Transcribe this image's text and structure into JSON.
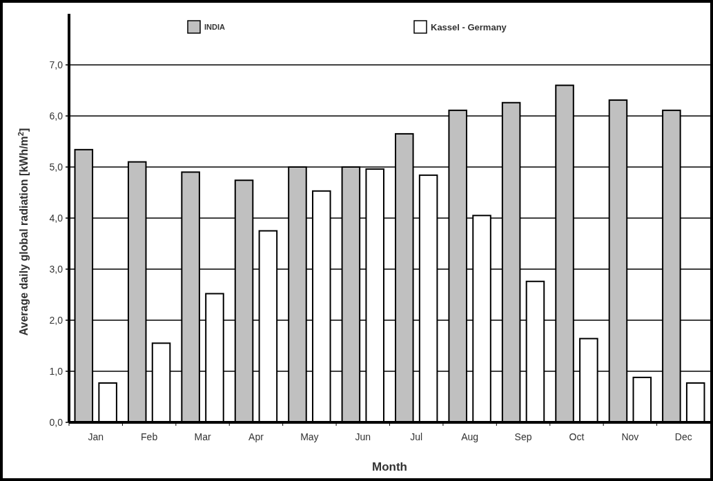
{
  "chart_data": {
    "type": "bar",
    "xlabel": "Month",
    "ylabel": "Average daily global radiation [kWh/m$^{2}$]",
    "categories": [
      "Jan",
      "Feb",
      "Mar",
      "Apr",
      "May",
      "Jun",
      "Jul",
      "Aug",
      "Sep",
      "Oct",
      "Nov",
      "Dec"
    ],
    "series": [
      {
        "name": "INDIA",
        "color": "#c0c0c0",
        "values": [
          5.34,
          5.1,
          4.9,
          4.74,
          5.0,
          5.0,
          5.65,
          6.11,
          6.26,
          6.6,
          6.31,
          6.11
        ]
      },
      {
        "name": "Kassel  - Germany",
        "color": "#ffffff",
        "values": [
          0.77,
          1.55,
          2.52,
          3.75,
          4.53,
          4.96,
          4.84,
          4.05,
          2.76,
          1.64,
          0.88,
          0.77
        ]
      }
    ],
    "ylim": [
      0,
      8
    ],
    "yticks": [
      {
        "value": 0,
        "label": "0,0"
      },
      {
        "value": 1,
        "label": "1,0"
      },
      {
        "value": 2,
        "label": "2,0"
      },
      {
        "value": 3,
        "label": "3,0"
      },
      {
        "value": 4,
        "label": "4,0"
      },
      {
        "value": 5,
        "label": "5,0"
      },
      {
        "value": 6,
        "label": "6,0"
      },
      {
        "value": 7,
        "label": "7,0"
      }
    ],
    "grid": "y",
    "legend": "top"
  }
}
